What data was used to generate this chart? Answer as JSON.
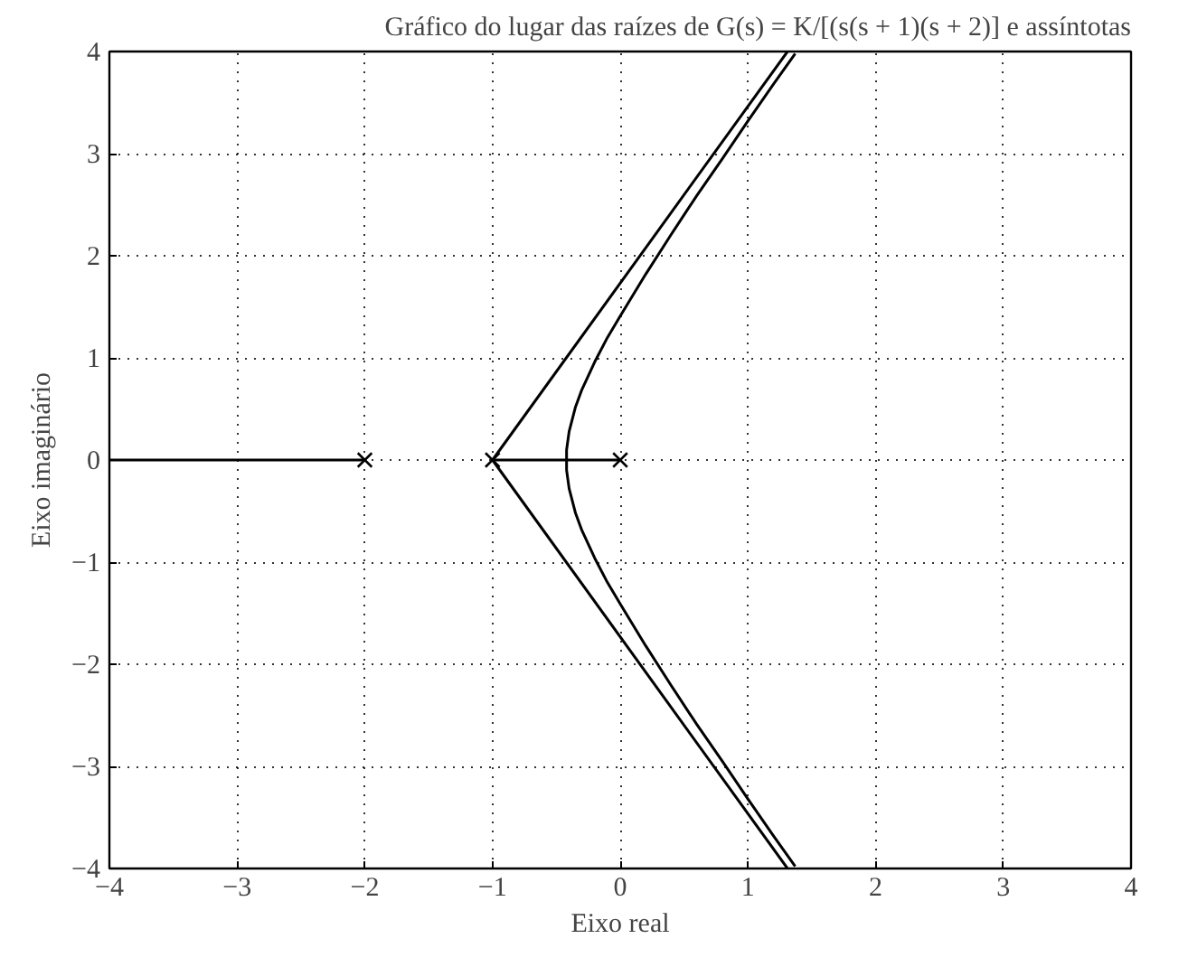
{
  "chart_data": {
    "type": "line",
    "title": "Gráfico do lugar das raízes de G(s) = K/[(s(s + 1)(s + 2)] e assíntotas",
    "xlabel": "Eixo real",
    "ylabel": "Eixo imaginário",
    "series": [
      {
        "color": "#000000",
        "x": [
          -4,
          -2
        ],
        "values": [
          0,
          0
        ]
      },
      {
        "color": "#000000",
        "x": [
          -1,
          0
        ],
        "values": [
          0,
          0
        ]
      },
      {
        "color": "#000000",
        "x": [
          -1,
          1.31
        ],
        "values": [
          0,
          4
        ]
      },
      {
        "color": "#000000",
        "x": [
          -1,
          1.31
        ],
        "values": [
          0,
          -4
        ]
      },
      {
        "color": "#000000",
        "x": [
          1.37,
          1.2,
          1.0,
          0.8,
          0.6,
          0.4,
          0.2,
          0,
          -0.1,
          -0.2,
          -0.3,
          -0.35,
          -0.4,
          -0.42,
          -0.42,
          -0.42,
          -0.4,
          -0.35,
          -0.3,
          -0.2,
          -0.1,
          0,
          0.2,
          0.4,
          0.6,
          0.8,
          1.0,
          1.2,
          1.37
        ],
        "values": [
          3.98,
          3.68,
          3.32,
          2.95,
          2.59,
          2.21,
          1.82,
          1.41,
          1.2,
          0.96,
          0.69,
          0.52,
          0.28,
          0.1,
          0,
          -0.1,
          -0.28,
          -0.52,
          -0.69,
          -0.96,
          -1.2,
          -1.41,
          -1.82,
          -2.21,
          -2.59,
          -2.95,
          -3.32,
          -3.68,
          -3.98
        ]
      },
      {
        "type": "scatter",
        "marker": "cross",
        "color": "#000000",
        "x": [
          -2,
          -1,
          0
        ],
        "values": [
          0,
          0,
          0
        ]
      }
    ],
    "xlim": [
      -4,
      4
    ],
    "ylim": [
      -4,
      4
    ],
    "xticks": [
      {
        "value": -4,
        "label": "−4"
      },
      {
        "value": -3,
        "label": "−3"
      },
      {
        "value": -2,
        "label": "−2"
      },
      {
        "value": -1,
        "label": "−1"
      },
      0,
      1,
      2,
      3,
      4
    ],
    "yticks": [
      {
        "value": -4,
        "label": "−4"
      },
      {
        "value": -3,
        "label": "−3"
      },
      {
        "value": -2,
        "label": "−2"
      },
      {
        "value": -1,
        "label": "−1"
      },
      0,
      1,
      2,
      3,
      4
    ],
    "grid": true,
    "line_style": "solid"
  }
}
